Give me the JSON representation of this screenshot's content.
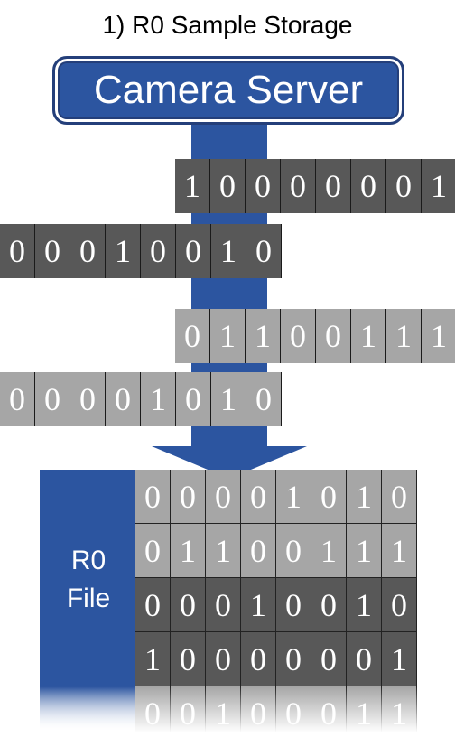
{
  "title": "1) R0 Sample Storage",
  "server_label": "Camera Server",
  "file_label_line1": "R0",
  "file_label_line2": "File",
  "stream_rows": [
    {
      "bits": [
        "1",
        "0",
        "0",
        "0",
        "0",
        "0",
        "0",
        "1"
      ],
      "shade": "dark"
    },
    {
      "bits": [
        "0",
        "0",
        "0",
        "1",
        "0",
        "0",
        "1",
        "0"
      ],
      "shade": "dark"
    },
    {
      "bits": [
        "0",
        "1",
        "1",
        "0",
        "0",
        "1",
        "1",
        "1"
      ],
      "shade": "light"
    },
    {
      "bits": [
        "0",
        "0",
        "0",
        "0",
        "1",
        "0",
        "1",
        "0"
      ],
      "shade": "light"
    }
  ],
  "file_rows": [
    {
      "bits": [
        "0",
        "0",
        "0",
        "0",
        "1",
        "0",
        "1",
        "0"
      ],
      "shade": "light"
    },
    {
      "bits": [
        "0",
        "1",
        "1",
        "0",
        "0",
        "1",
        "1",
        "1"
      ],
      "shade": "light"
    },
    {
      "bits": [
        "0",
        "0",
        "0",
        "1",
        "0",
        "0",
        "1",
        "0"
      ],
      "shade": "dark"
    },
    {
      "bits": [
        "1",
        "0",
        "0",
        "0",
        "0",
        "0",
        "0",
        "1"
      ],
      "shade": "dark"
    },
    {
      "bits": [
        "0",
        "0",
        "1",
        "0",
        "0",
        "0",
        "1",
        "1"
      ],
      "shade": "light"
    }
  ],
  "colors": {
    "blue": "#2c55a0",
    "dark_cell": "#585858",
    "light_cell": "#a6a6a6"
  }
}
